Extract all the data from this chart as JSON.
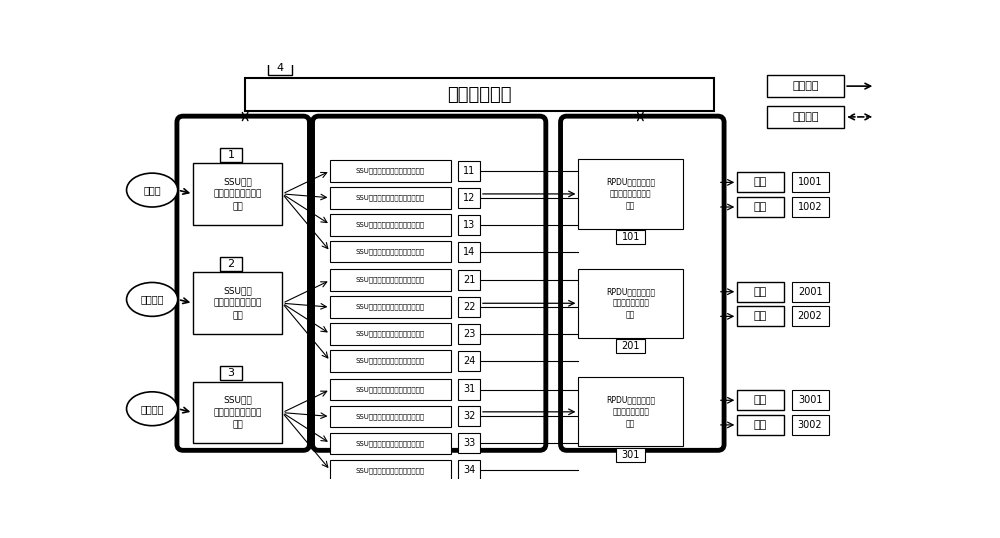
{
  "title": "智能控制单元",
  "legend_cable": "配电线缆",
  "legend_comm": "通讯线缆",
  "sources": [
    "主电源",
    "应急电源",
    "地面电源"
  ],
  "ssu_main_text": "SSU单体\n（依据负载设计电流\n值）",
  "ssu_ids": [
    "1",
    "2",
    "3"
  ],
  "ssu_inner_text": "SSU单体（依据负\n载设计电流值）",
  "rpdu_text1": "RPDU远程配电单元\n（依据负载设计电流\n值）",
  "rpdu_text2": "RPDU远程配电单元\n（依据负载设计电\n流）",
  "rpdu_ids": [
    "101",
    "201",
    "301"
  ],
  "mid_ids": [
    "11",
    "12",
    "13",
    "14",
    "21",
    "22",
    "23",
    "24",
    "31",
    "32",
    "33",
    "34"
  ],
  "load_text": "负载",
  "load_ids": [
    "1001",
    "1002",
    "2001",
    "2002",
    "3001",
    "3002"
  ],
  "control_id": "4",
  "bg_color": "#ffffff"
}
